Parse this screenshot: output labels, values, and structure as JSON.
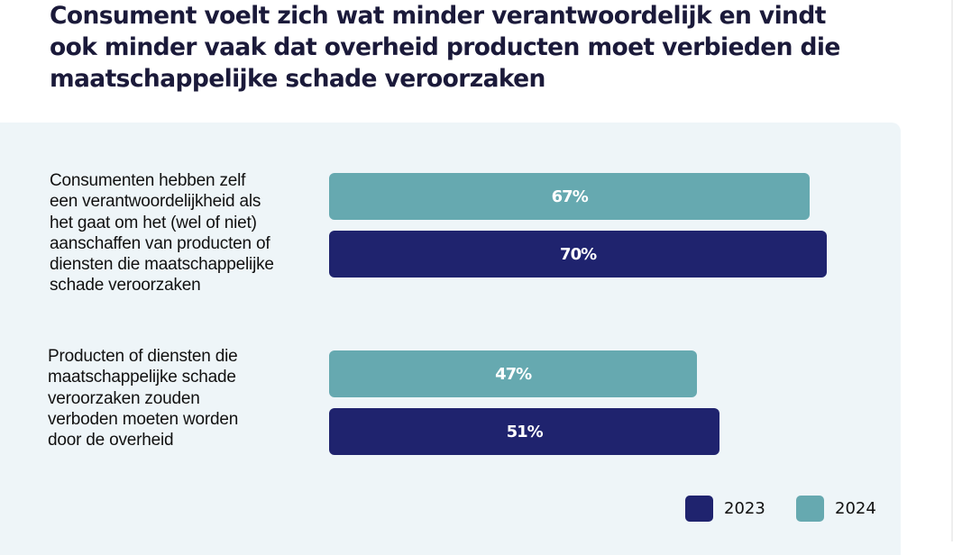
{
  "title": "Consument voelt zich wat minder verantwoordelijk en vindt ook minder vaak dat overheid producten moet verbieden die maatschappelijke schade veroorzaken",
  "colors": {
    "series_2023": "#1f236e",
    "series_2024": "#66a9b0",
    "panel_background": "#eef5f8",
    "title_text": "#1b1a3a"
  },
  "chart_data": {
    "type": "bar",
    "orientation": "horizontal",
    "title": "Consument voelt zich wat minder verantwoordelijk en vindt ook minder vaak dat overheid producten moet verbieden die maatschappelijke schade veroorzaken",
    "categories": [
      "Consumenten hebben zelf een verantwoordelijkheid als het gaat om het (wel of niet) aanschaffen van producten of diensten die maatschappelijke schade veroorzaken",
      "Producten of diensten die maatschappelijke schade veroorzaken zouden verboden moeten worden door de overheid"
    ],
    "series": [
      {
        "name": "2024",
        "values": [
          67,
          47
        ],
        "labels": [
          "67%",
          "47%"
        ]
      },
      {
        "name": "2023",
        "values": [
          70,
          51
        ],
        "labels": [
          "70%",
          "51%"
        ]
      }
    ],
    "unit": "%",
    "xlabel": "",
    "ylabel": "",
    "grid": false,
    "legend": {
      "position": "bottom-right",
      "entries": [
        "2023",
        "2024"
      ]
    }
  },
  "category_label_lines": [
    [
      "Consumenten hebben zelf",
      "een verantwoordelijkheid als",
      "het gaat om het (wel of niet)",
      "aanschaffen van producten of",
      "diensten die maatschappelijke",
      "schade veroorzaken"
    ],
    [
      "Producten of diensten die",
      "maatschappelijke schade",
      "veroorzaken zouden",
      "verboden moeten worden",
      "door de overheid"
    ]
  ]
}
